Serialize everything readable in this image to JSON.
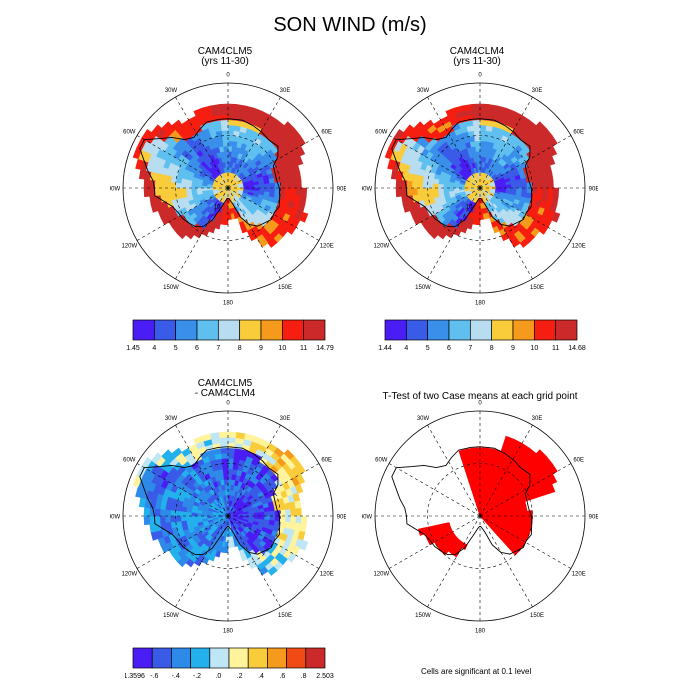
{
  "title": "SON WIND (m/s)",
  "lon_labels": [
    "0",
    "30E",
    "60E",
    "90E",
    "120E",
    "150E",
    "180",
    "150W",
    "120W",
    "90W",
    "60W",
    "30W"
  ],
  "panels": [
    {
      "id": "cam4clm5",
      "title_line1": "CAM4CLM5",
      "title_line2": "(yrs 11-30)",
      "contour_label": "10"
    },
    {
      "id": "cam4clm4",
      "title_line1": "CAM4CLM4",
      "title_line2": "(yrs 11-30)",
      "contour_label": "10"
    },
    {
      "id": "difference",
      "title_line1": "CAM4CLM5",
      "title_line2": "- CAM4CLM4"
    },
    {
      "id": "ttest",
      "title_line1": "T-Test of two Case means at each grid point",
      "note": "Cells are significant at 0.1 level"
    }
  ],
  "colorbars": [
    {
      "id": "cb1",
      "labels": [
        "1.45",
        "4",
        "5",
        "6",
        "7",
        "8",
        "9",
        "10",
        "11",
        "14.79"
      ],
      "colors": [
        "#4b1df5",
        "#3a5ae8",
        "#3a8fea",
        "#5fc0f0",
        "#b8dcf0",
        "#f8cc3a",
        "#f59a1c",
        "#f61e10",
        "#cc2a2a"
      ]
    },
    {
      "id": "cb2",
      "labels": [
        "1.44",
        "4",
        "5",
        "6",
        "7",
        "8",
        "9",
        "10",
        "11",
        "14.68"
      ],
      "colors": [
        "#4b1df5",
        "#3a5ae8",
        "#3a8fea",
        "#5fc0f0",
        "#b8dcf0",
        "#f8cc3a",
        "#f59a1c",
        "#f61e10",
        "#cc2a2a"
      ]
    },
    {
      "id": "cb3",
      "labels": [
        "-1.3596",
        "-.6",
        "-.4",
        "-.2",
        ".0",
        ".2",
        ".4",
        ".6",
        ".8",
        "2.503"
      ],
      "colors": [
        "#4b1df5",
        "#3a5ae8",
        "#2d8ae8",
        "#24b0ec",
        "#bfe6f5",
        "#fff39c",
        "#f8cc3a",
        "#f59a1c",
        "#f24a14",
        "#cc2a2a"
      ]
    }
  ],
  "ttest_color": "#ff0000"
}
